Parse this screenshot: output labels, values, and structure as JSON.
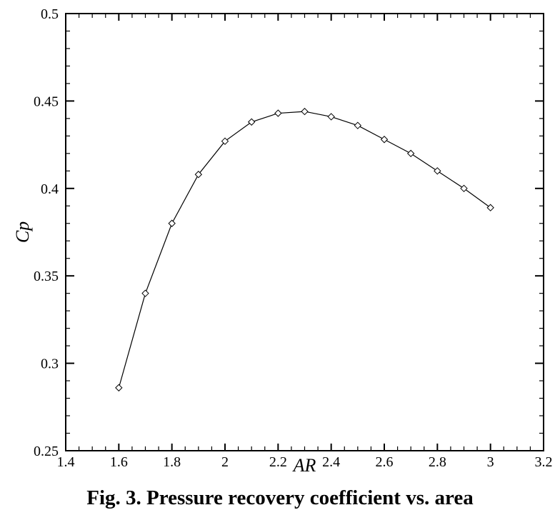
{
  "chart_data": {
    "type": "line",
    "title": "",
    "xlabel": "AR",
    "ylabel": "Cp",
    "xlim": [
      1.4,
      3.2
    ],
    "ylim": [
      0.25,
      0.5
    ],
    "xticks": [
      "1.4",
      "1.6",
      "1.8",
      "2",
      "2.2",
      "2.4",
      "2.6",
      "2.8",
      "3",
      "3.2"
    ],
    "yticks": [
      "0.25",
      "0.3",
      "0.35",
      "0.4",
      "0.45",
      "0.5"
    ],
    "grid": false,
    "marker": "diamond",
    "series": [
      {
        "x": [
          1.6,
          1.7,
          1.8,
          1.9,
          2.0,
          2.1,
          2.2,
          2.3,
          2.4,
          2.5,
          2.6,
          2.7,
          2.8,
          2.9,
          3.0
        ],
        "y": [
          0.286,
          0.34,
          0.38,
          0.408,
          0.427,
          0.438,
          0.443,
          0.444,
          0.441,
          0.436,
          0.428,
          0.42,
          0.41,
          0.4,
          0.389
        ]
      }
    ]
  },
  "caption": "Fig. 3. Pressure recovery coefficient vs. area"
}
